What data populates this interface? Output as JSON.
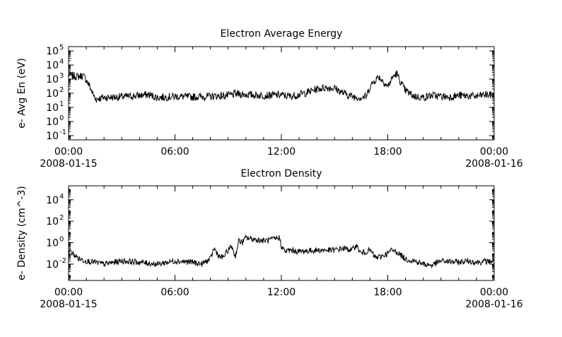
{
  "colors": {
    "background": "#ffffff",
    "ink": "#000000"
  },
  "chart_data": [
    {
      "type": "line",
      "title": "Electron Average Energy",
      "ylabel": "e- Avg En (eV)",
      "xlabel": "",
      "yscale": "log",
      "grid": false,
      "xlim": [
        "2008-01-15T00:00",
        "2008-01-16T00:00"
      ],
      "ylim": [
        0.05,
        200000
      ],
      "x_ticks": [
        {
          "time": "00:00",
          "date": "2008-01-15"
        },
        {
          "time": "06:00",
          "date": ""
        },
        {
          "time": "12:00",
          "date": ""
        },
        {
          "time": "18:00",
          "date": ""
        },
        {
          "time": "00:00",
          "date": "2008-01-16"
        }
      ],
      "y_ticks": [
        {
          "base": "10",
          "exp": "-1",
          "value": 0.1
        },
        {
          "base": "10",
          "exp": "0",
          "value": 1
        },
        {
          "base": "10",
          "exp": "1",
          "value": 10
        },
        {
          "base": "10",
          "exp": "2",
          "value": 100
        },
        {
          "base": "10",
          "exp": "3",
          "value": 1000
        },
        {
          "base": "10",
          "exp": "4",
          "value": 10000
        },
        {
          "base": "10",
          "exp": "5",
          "value": 100000
        }
      ],
      "series": [
        {
          "color": "#000000",
          "x_hours": [
            0,
            0.5,
            0.8,
            1.0,
            1.1,
            1.2,
            1.3,
            1.5,
            2.0,
            3.0,
            4.0,
            4.5,
            5.0,
            6.0,
            7.0,
            8.0,
            9.0,
            9.5,
            10.0,
            11.0,
            12.0,
            12.5,
            13.0,
            13.5,
            14.0,
            14.5,
            15.0,
            15.5,
            16.0,
            16.5,
            16.8,
            17.0,
            17.3,
            17.5,
            17.8,
            18.0,
            18.3,
            18.5,
            18.8,
            19.0,
            19.5,
            20.0,
            20.5,
            21.0,
            21.5,
            22.0,
            22.5,
            23.0,
            23.5,
            24.0
          ],
          "y": [
            2000,
            1500,
            1800,
            900,
            500,
            300,
            150,
            40,
            50,
            55,
            70,
            80,
            50,
            60,
            55,
            60,
            70,
            90,
            80,
            70,
            75,
            60,
            80,
            120,
            200,
            250,
            230,
            100,
            60,
            50,
            60,
            300,
            900,
            1500,
            600,
            300,
            1500,
            2500,
            400,
            150,
            60,
            50,
            70,
            60,
            55,
            70,
            65,
            60,
            80,
            70
          ]
        }
      ]
    },
    {
      "type": "line",
      "title": "Electron Density",
      "ylabel": "e- Density (cm^-3)",
      "xlabel": "",
      "yscale": "log",
      "grid": false,
      "xlim": [
        "2008-01-15T00:00",
        "2008-01-16T00:00"
      ],
      "ylim": [
        0.0003,
        200000
      ],
      "x_ticks": [
        {
          "time": "00:00",
          "date": "2008-01-15"
        },
        {
          "time": "06:00",
          "date": ""
        },
        {
          "time": "12:00",
          "date": ""
        },
        {
          "time": "18:00",
          "date": ""
        },
        {
          "time": "00:00",
          "date": "2008-01-16"
        }
      ],
      "y_ticks": [
        {
          "base": "10",
          "exp": "-2",
          "value": 0.01
        },
        {
          "base": "10",
          "exp": "0",
          "value": 1
        },
        {
          "base": "10",
          "exp": "2",
          "value": 100
        },
        {
          "base": "10",
          "exp": "4",
          "value": 10000
        }
      ],
      "series": [
        {
          "color": "#000000",
          "x_hours": [
            0,
            0.3,
            0.6,
            1.0,
            1.5,
            2.0,
            3.0,
            4.0,
            5.0,
            6.0,
            7.0,
            7.5,
            8.0,
            8.2,
            8.5,
            8.7,
            9.0,
            9.2,
            9.4,
            9.6,
            9.8,
            10.0,
            10.5,
            11.0,
            11.5,
            11.9,
            12.0,
            12.2,
            12.5,
            13.0,
            14.0,
            15.0,
            15.5,
            16.0,
            16.2,
            16.5,
            17.0,
            17.3,
            17.6,
            18.0,
            18.2,
            18.5,
            19.0,
            19.5,
            20.0,
            20.5,
            21.0,
            22.0,
            22.5,
            23.0,
            24.0
          ],
          "y": [
            0.2,
            0.08,
            0.03,
            0.02,
            0.015,
            0.01,
            0.02,
            0.015,
            0.01,
            0.02,
            0.015,
            0.01,
            0.03,
            0.3,
            0.05,
            0.04,
            0.2,
            0.5,
            0.05,
            1.5,
            1.0,
            3.0,
            2.0,
            1.5,
            2.0,
            3.0,
            0.5,
            0.15,
            0.2,
            0.15,
            0.2,
            0.2,
            0.3,
            0.2,
            0.6,
            0.1,
            0.2,
            0.04,
            0.05,
            0.1,
            0.2,
            0.15,
            0.03,
            0.02,
            0.01,
            0.008,
            0.02,
            0.015,
            0.02,
            0.015,
            0.02
          ]
        }
      ]
    }
  ]
}
